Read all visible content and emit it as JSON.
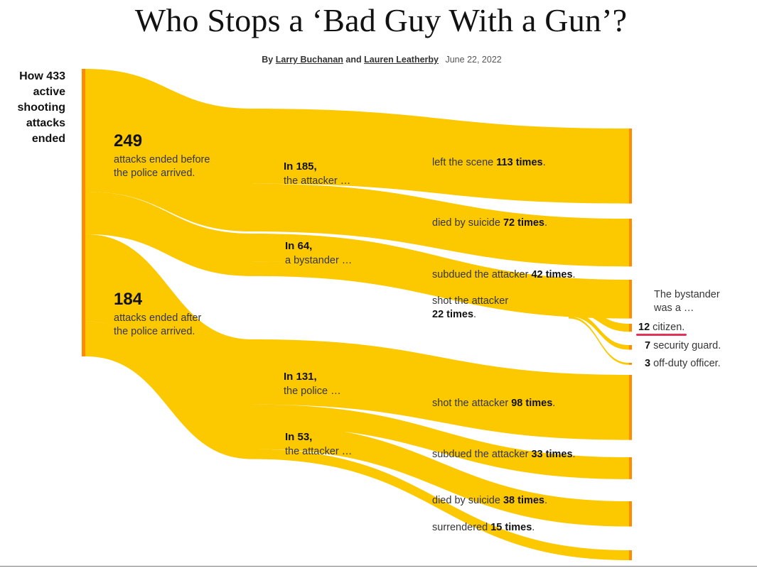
{
  "header": {
    "title": "Who Stops a ‘Bad Guy With a Gun’?",
    "byline_prefix": "By",
    "author1": "Larry Buchanan",
    "byline_and": "and",
    "author2": "Lauren Leatherby",
    "date": "June 22, 2022"
  },
  "total_label": "How 433 active shooting attacks ended",
  "labels": {
    "before_count": "249",
    "before_text": "attacks ended before the police arrived.",
    "after_count": "184",
    "after_text": "attacks ended after the police arrived.",
    "in185": "In 185,",
    "in185_sub": "the attacker …",
    "in64": "In 64,",
    "in64_sub": "a bystander …",
    "in131": "In 131,",
    "in131_sub": "the police …",
    "in53": "In 53,",
    "in53_sub": "the attacker …",
    "left_scene": "left the scene",
    "left_scene_n": "113 times",
    "suicide1": "died by suicide",
    "suicide1_n": "72 times",
    "subdued1": "subdued the attacker",
    "subdued1_n": "42 times",
    "shot1": "shot the attacker",
    "shot1_n": "22 times",
    "shot2": "shot the attacker",
    "shot2_n": "98 times",
    "subdued2": "subdued the attacker",
    "subdued2_n": "33 times",
    "suicide2": "died by suicide",
    "suicide2_n": "38 times",
    "surrendered": "surrendered",
    "surrendered_n": "15 times",
    "bystander_head": "The bystander was a …",
    "citizen_n": "12",
    "citizen": "citizen",
    "guard_n": "7",
    "guard": "security guard",
    "offduty_n": "3",
    "offduty": "off-duty officer"
  },
  "colors": {
    "flow": "#fcc800",
    "node": "#ff8c00",
    "highlight": "#e0325a"
  },
  "sankey": {
    "total": 433,
    "timing": [
      {
        "name": "before police arrived",
        "value": 249
      },
      {
        "name": "after police arrived",
        "value": 184
      }
    ],
    "actors": [
      {
        "name": "the attacker",
        "timing": "before police arrived",
        "value": 185
      },
      {
        "name": "a bystander",
        "timing": "before police arrived",
        "value": 64
      },
      {
        "name": "the police",
        "timing": "after police arrived",
        "value": 131
      },
      {
        "name": "the attacker",
        "timing": "after police arrived",
        "value": 53
      }
    ],
    "outcomes": [
      {
        "name": "left the scene",
        "value": 113
      },
      {
        "name": "died by suicide",
        "value": 72
      },
      {
        "name": "subdued the attacker",
        "value": 42
      },
      {
        "name": "shot the attacker",
        "value": 22
      },
      {
        "name": "shot the attacker",
        "value": 98
      },
      {
        "name": "subdued the attacker",
        "value": 33
      },
      {
        "name": "died by suicide",
        "value": 38
      },
      {
        "name": "surrendered",
        "value": 15
      }
    ],
    "bystander_types": [
      {
        "name": "citizen",
        "value": 12
      },
      {
        "name": "security guard",
        "value": 7
      },
      {
        "name": "off-duty officer",
        "value": 3
      }
    ]
  }
}
